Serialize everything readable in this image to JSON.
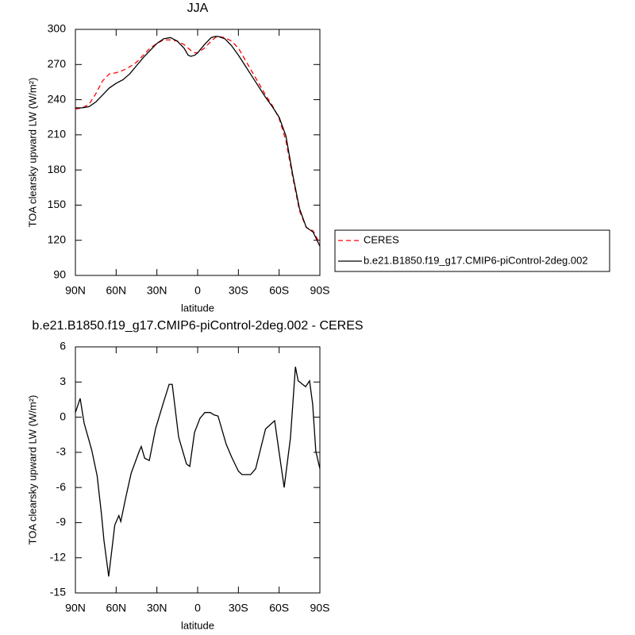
{
  "chart_data": [
    {
      "type": "line",
      "title": "JJA",
      "xlabel": "latitude",
      "ylabel": "TOA clearsky upward LW (W/m²)",
      "x": [
        90,
        85,
        80,
        75,
        70,
        65,
        60,
        55,
        50,
        45,
        40,
        35,
        30,
        25,
        20,
        15,
        10,
        7,
        5,
        2,
        0,
        -5,
        -10,
        -13,
        -15,
        -20,
        -25,
        -30,
        -35,
        -40,
        -45,
        -50,
        -55,
        -60,
        -65,
        -70,
        -75,
        -80,
        -85,
        -90
      ],
      "series": [
        {
          "name": "CERES",
          "color": "#ff0000",
          "line_style": "dashed",
          "values": [
            232,
            233,
            236,
            245,
            256,
            262,
            263,
            265,
            268,
            272,
            278,
            284,
            288,
            291,
            291,
            290,
            287,
            284,
            282,
            280,
            280,
            284,
            290,
            293,
            294,
            293,
            290,
            284,
            274,
            264,
            254,
            244,
            235,
            224,
            205,
            174,
            145,
            131,
            128,
            117
          ]
        },
        {
          "name": "b.e21.B1850.f19_g17.CMIP6-piControl-2deg.002",
          "color": "#000000",
          "line_style": "solid",
          "values": [
            233,
            233,
            234,
            238,
            244,
            250,
            254,
            257,
            262,
            269,
            276,
            282,
            288,
            292,
            293,
            290,
            284,
            278,
            277,
            278,
            280,
            287,
            293,
            294,
            294,
            292,
            286,
            278,
            269,
            260,
            251,
            242,
            234,
            225,
            209,
            176,
            147,
            131,
            127,
            115
          ]
        }
      ],
      "xlim": [
        90,
        -90
      ],
      "xticks": [
        {
          "value": 90,
          "label": "90N"
        },
        {
          "value": 60,
          "label": "60N"
        },
        {
          "value": 30,
          "label": "30N"
        },
        0,
        {
          "value": -30,
          "label": "30S"
        },
        {
          "value": -60,
          "label": "60S"
        },
        {
          "value": -90,
          "label": "90S"
        }
      ],
      "ylim": [
        90,
        300
      ],
      "yticks": [
        90,
        120,
        150,
        180,
        210,
        240,
        270,
        300
      ],
      "legend": "outside-right"
    },
    {
      "type": "line",
      "title": "b.e21.B1850.f19_g17.CMIP6-piControl-2deg.002 - CERES",
      "xlabel": "latitude",
      "ylabel": "TOA clearsky upward LW (W/m²)",
      "x": [
        90,
        86.5,
        83.6,
        78,
        74,
        70.7,
        69,
        66.6,
        65.5,
        61,
        58,
        56.6,
        53,
        49,
        43,
        41.5,
        39,
        35.6,
        31,
        25.7,
        21,
        18.7,
        14,
        8.2,
        5.8,
        2.3,
        -1.7,
        -5.3,
        -9.3,
        -12,
        -15,
        -21,
        -25,
        -30,
        -32.7,
        -39,
        -42.7,
        -50,
        -56.7,
        -60,
        -63.7,
        -68.3,
        -72,
        -74,
        -79.5,
        -82.4,
        -84.7,
        -87,
        -90
      ],
      "series": [
        {
          "color": "#000000",
          "line_style": "solid",
          "values": [
            0.4,
            1.6,
            -0.5,
            -2.8,
            -5,
            -8.4,
            -10.5,
            -12.6,
            -13.6,
            -9.2,
            -8.4,
            -8.9,
            -6.9,
            -4.8,
            -2.9,
            -2.5,
            -3.5,
            -3.7,
            -1.0,
            1.05,
            2.8,
            2.8,
            -1.7,
            -4.0,
            -4.2,
            -1.3,
            -0.1,
            0.4,
            0.4,
            0.2,
            0.1,
            -2.3,
            -3.4,
            -4.6,
            -4.9,
            -4.9,
            -4.4,
            -1.0,
            -0.3,
            -3.0,
            -6.0,
            -1.8,
            4.3,
            3.1,
            2.6,
            3.1,
            1.1,
            -2.9,
            -4.4
          ]
        }
      ],
      "xlim": [
        90,
        -90
      ],
      "xticks": [
        {
          "value": 90,
          "label": "90N"
        },
        {
          "value": 60,
          "label": "60N"
        },
        {
          "value": 30,
          "label": "30N"
        },
        0,
        {
          "value": -30,
          "label": "30S"
        },
        {
          "value": -60,
          "label": "60S"
        },
        {
          "value": -90,
          "label": "90S"
        }
      ],
      "ylim": [
        -15,
        6
      ],
      "yticks": [
        -15,
        -12,
        -9,
        -6,
        -3,
        0,
        3,
        6
      ]
    }
  ]
}
